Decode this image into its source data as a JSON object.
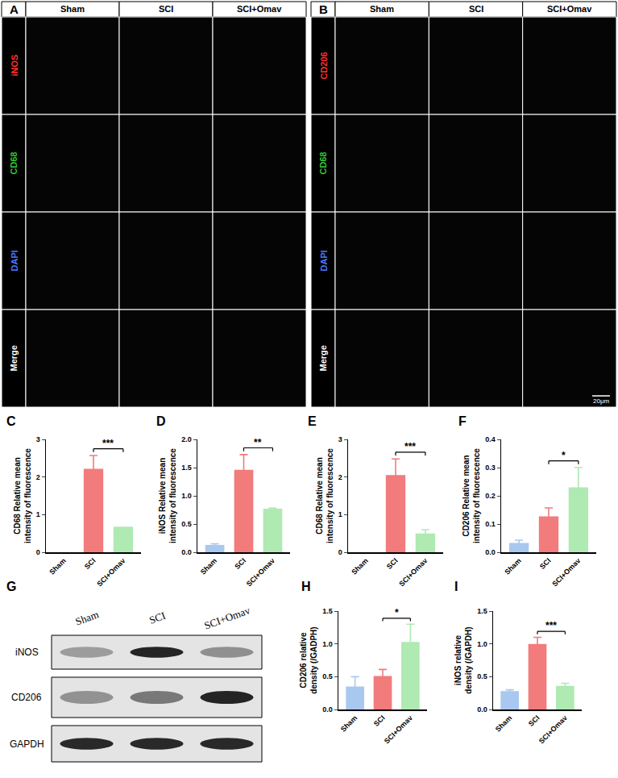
{
  "image_panels": [
    {
      "letter": "A",
      "columns": [
        "Sham",
        "SCI",
        "SCI+Omav"
      ],
      "rows": [
        {
          "label": "iNOS",
          "color": "#ff3030"
        },
        {
          "label": "CD68",
          "color": "#33cc33"
        },
        {
          "label": "DAPI",
          "color": "#4a78ff"
        },
        {
          "label": "Merge",
          "color": "#ffffff"
        }
      ]
    },
    {
      "letter": "B",
      "columns": [
        "Sham",
        "SCI",
        "SCI+Omav"
      ],
      "rows": [
        {
          "label": "CD206",
          "color": "#ff3030"
        },
        {
          "label": "CD68",
          "color": "#33cc33"
        },
        {
          "label": "DAPI",
          "color": "#4a78ff"
        },
        {
          "label": "Merge",
          "color": "#ffffff"
        }
      ],
      "scale_bar": "20μm"
    }
  ],
  "blot": {
    "letter": "G",
    "lanes": [
      "Sham",
      "SCI",
      "SCI+Omav"
    ],
    "bands": [
      {
        "label": "iNOS",
        "density_panel": "I"
      },
      {
        "label": "CD206",
        "density_panel": "H"
      },
      {
        "label": "GAPDH"
      }
    ]
  },
  "chart_data": [
    {
      "panel": "C",
      "type": "bar",
      "y_label": "CD68 Relative mean intensity of fluorescence",
      "categories": [
        "Sham",
        "SCI",
        "SCI+Omav"
      ],
      "values": [
        0,
        2.22,
        0.68
      ],
      "errors": [
        0,
        0.35,
        0
      ],
      "colors": [
        "#a9c8f0",
        "#f27b7c",
        "#aeeab2"
      ],
      "ylim": [
        0,
        3
      ],
      "yticks": [
        0,
        1,
        2,
        3
      ],
      "comparisons": [
        {
          "from": "SCI",
          "to": "SCI+Omav",
          "label": "***"
        }
      ]
    },
    {
      "panel": "D",
      "type": "bar",
      "y_label": "iNOS Relative mean intensity of fluorescence",
      "categories": [
        "Sham",
        "SCI",
        "SCI+Omav"
      ],
      "values": [
        0.13,
        1.46,
        0.77
      ],
      "errors": [
        0.02,
        0.27,
        0.01
      ],
      "colors": [
        "#a9c8f0",
        "#f27b7c",
        "#aeeab2"
      ],
      "ylim": [
        0,
        2
      ],
      "yticks": [
        {
          "value": 0,
          "label": "0.0"
        },
        0.5,
        {
          "value": 1,
          "label": "1.0"
        },
        1.5,
        {
          "value": 2,
          "label": "2.0"
        }
      ],
      "comparisons": [
        {
          "from": "SCI",
          "to": "SCI+Omav",
          "label": "**"
        }
      ]
    },
    {
      "panel": "E",
      "type": "bar",
      "y_label": "CD68 Relative mean intensity of fluorescence",
      "categories": [
        "Sham",
        "SCI",
        "SCI+Omav"
      ],
      "values": [
        0,
        2.05,
        0.5
      ],
      "errors": [
        0,
        0.43,
        0.1
      ],
      "colors": [
        "#a9c8f0",
        "#f27b7c",
        "#aeeab2"
      ],
      "ylim": [
        0,
        3
      ],
      "yticks": [
        0,
        1,
        2,
        3
      ],
      "comparisons": [
        {
          "from": "SCI",
          "to": "SCI+Omav",
          "label": "***"
        }
      ]
    },
    {
      "panel": "F",
      "type": "bar",
      "y_label": "CD206 Relative mean intensity of fluorescence",
      "categories": [
        "Sham",
        "SCI",
        "SCI+Omav"
      ],
      "values": [
        0.033,
        0.127,
        0.23
      ],
      "errors": [
        0.01,
        0.03,
        0.07
      ],
      "colors": [
        "#a9c8f0",
        "#f27b7c",
        "#aeeab2"
      ],
      "ylim": [
        0,
        0.4
      ],
      "yticks": [
        {
          "value": 0,
          "label": "0.0"
        },
        0.1,
        0.2,
        0.3,
        0.4
      ],
      "comparisons": [
        {
          "from": "SCI",
          "to": "SCI+Omav",
          "label": "*"
        }
      ]
    },
    {
      "panel": "H",
      "type": "bar",
      "y_label": "CD206 relative density (/GADPH)",
      "categories": [
        "Sham",
        "SCI",
        "SCI+Omav"
      ],
      "values": [
        0.35,
        0.51,
        1.03
      ],
      "errors": [
        0.15,
        0.1,
        0.27
      ],
      "colors": [
        "#a9c8f0",
        "#f27b7c",
        "#aeeab2"
      ],
      "ylim": [
        0,
        1.5
      ],
      "yticks": [
        {
          "value": 0,
          "label": "0.0"
        },
        0.5,
        {
          "value": 1,
          "label": "1.0"
        },
        1.5
      ],
      "comparisons": [
        {
          "from": "SCI",
          "to": "SCI+Omav",
          "label": "*"
        }
      ]
    },
    {
      "panel": "I",
      "type": "bar",
      "y_label": "iNOS relative density (/GAPDH)",
      "categories": [
        "Sham",
        "SCI",
        "SCI+Omav"
      ],
      "values": [
        0.28,
        1.0,
        0.36
      ],
      "errors": [
        0.02,
        0.1,
        0.04
      ],
      "colors": [
        "#a9c8f0",
        "#f27b7c",
        "#aeeab2"
      ],
      "ylim": [
        0,
        1.5
      ],
      "yticks": [
        {
          "value": 0,
          "label": "0.0"
        },
        0.5,
        {
          "value": 1,
          "label": "1.0"
        },
        1.5
      ],
      "comparisons": [
        {
          "from": "SCI",
          "to": "SCI+Omav",
          "label": "***"
        }
      ]
    }
  ]
}
